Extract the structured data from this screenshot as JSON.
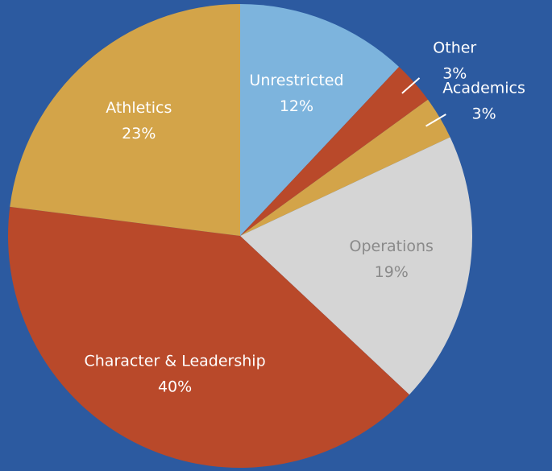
{
  "chart_data": {
    "type": "pie",
    "categories": [
      "Unrestricted",
      "Other",
      "Academics",
      "Operations",
      "Character & Leadership",
      "Athletics"
    ],
    "values": [
      12,
      3,
      3,
      19,
      40,
      23
    ],
    "value_labels": [
      "12%",
      "3%",
      "3%",
      "19%",
      "40%",
      "23%"
    ],
    "colors": [
      "#7db4dd",
      "#b9492a",
      "#d3a449",
      "#d5d5d5",
      "#b9492a",
      "#d3a449"
    ]
  }
}
